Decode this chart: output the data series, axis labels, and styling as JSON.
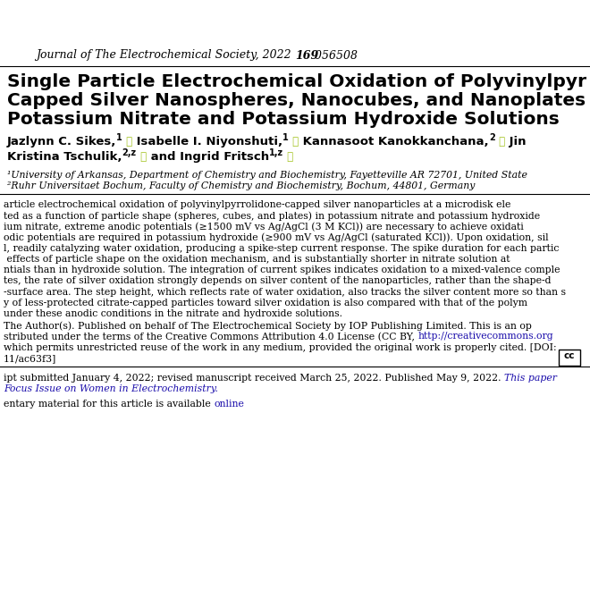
{
  "journal_pre": "Journal of The Electrochemical Society, 2022 ",
  "journal_vol": "169",
  "journal_post": " 056508",
  "title_lines": [
    "Single Particle Electrochemical Oxidation of Polyvinylpyr",
    "Capped Silver Nanospheres, Nanocubes, and Nanoplates",
    "Potassium Nitrate and Potassium Hydroxide Solutions"
  ],
  "abstract_lines": [
    "article electrochemical oxidation of polyvinylpyrrolidone-capped silver nanoparticles at a microdisk ele",
    "ted as a function of particle shape (spheres, cubes, and plates) in potassium nitrate and potassium hydroxide",
    "ium nitrate, extreme anodic potentials (≥1500 mV vs Ag/AgCl (3 M KCl)) are necessary to achieve oxidati",
    "odic potentials are required in potassium hydroxide (≥900 mV vs Ag/AgCl (saturated KCl)). Upon oxidation, sil",
    "l, readily catalyzing water oxidation, producing a spike-step current response. The spike duration for each partic",
    " effects of particle shape on the oxidation mechanism, and is substantially shorter in nitrate solution at",
    "ntials than in hydroxide solution. The integration of current spikes indicates oxidation to a mixed-valence comple",
    "tes, the rate of silver oxidation strongly depends on silver content of the nanoparticles, rather than the shape-d",
    "-surface area. The step height, which reflects rate of water oxidation, also tracks the silver content more so than s",
    "y of less-protected citrate-capped particles toward silver oxidation is also compared with that of the polym",
    "under these anodic conditions in the nitrate and hydroxide solutions."
  ],
  "license_lines": [
    "The Author(s). Published on behalf of The Electrochemical Society by IOP Publishing Limited. This is an op",
    "stributed under the terms of the Creative Commons Attribution 4.0 License (CC BY, http://creativecommons.org",
    "which permits unrestricted reuse of the work in any medium, provided the original work is properly cited. [DOI:",
    "11/ac63f3]"
  ],
  "affil1": "¹University of Arkansas, Department of Chemistry and Biochemistry, Fayetteville AR 72701, United State",
  "affil2": "²Ruhr Universitaet Bochum, Faculty of Chemistry and Biochemistry, Bochum, 44801, Germany",
  "background": "#ffffff",
  "text_color": "#000000",
  "link_color": "#1a0dab",
  "orcid_color": "#a5c424",
  "title_fs": 14.5,
  "journal_fs": 9.0,
  "author_fs": 9.5,
  "affil_fs": 7.8,
  "body_fs": 7.8,
  "fig_width": 6.6,
  "fig_height": 6.6,
  "dpi": 100
}
